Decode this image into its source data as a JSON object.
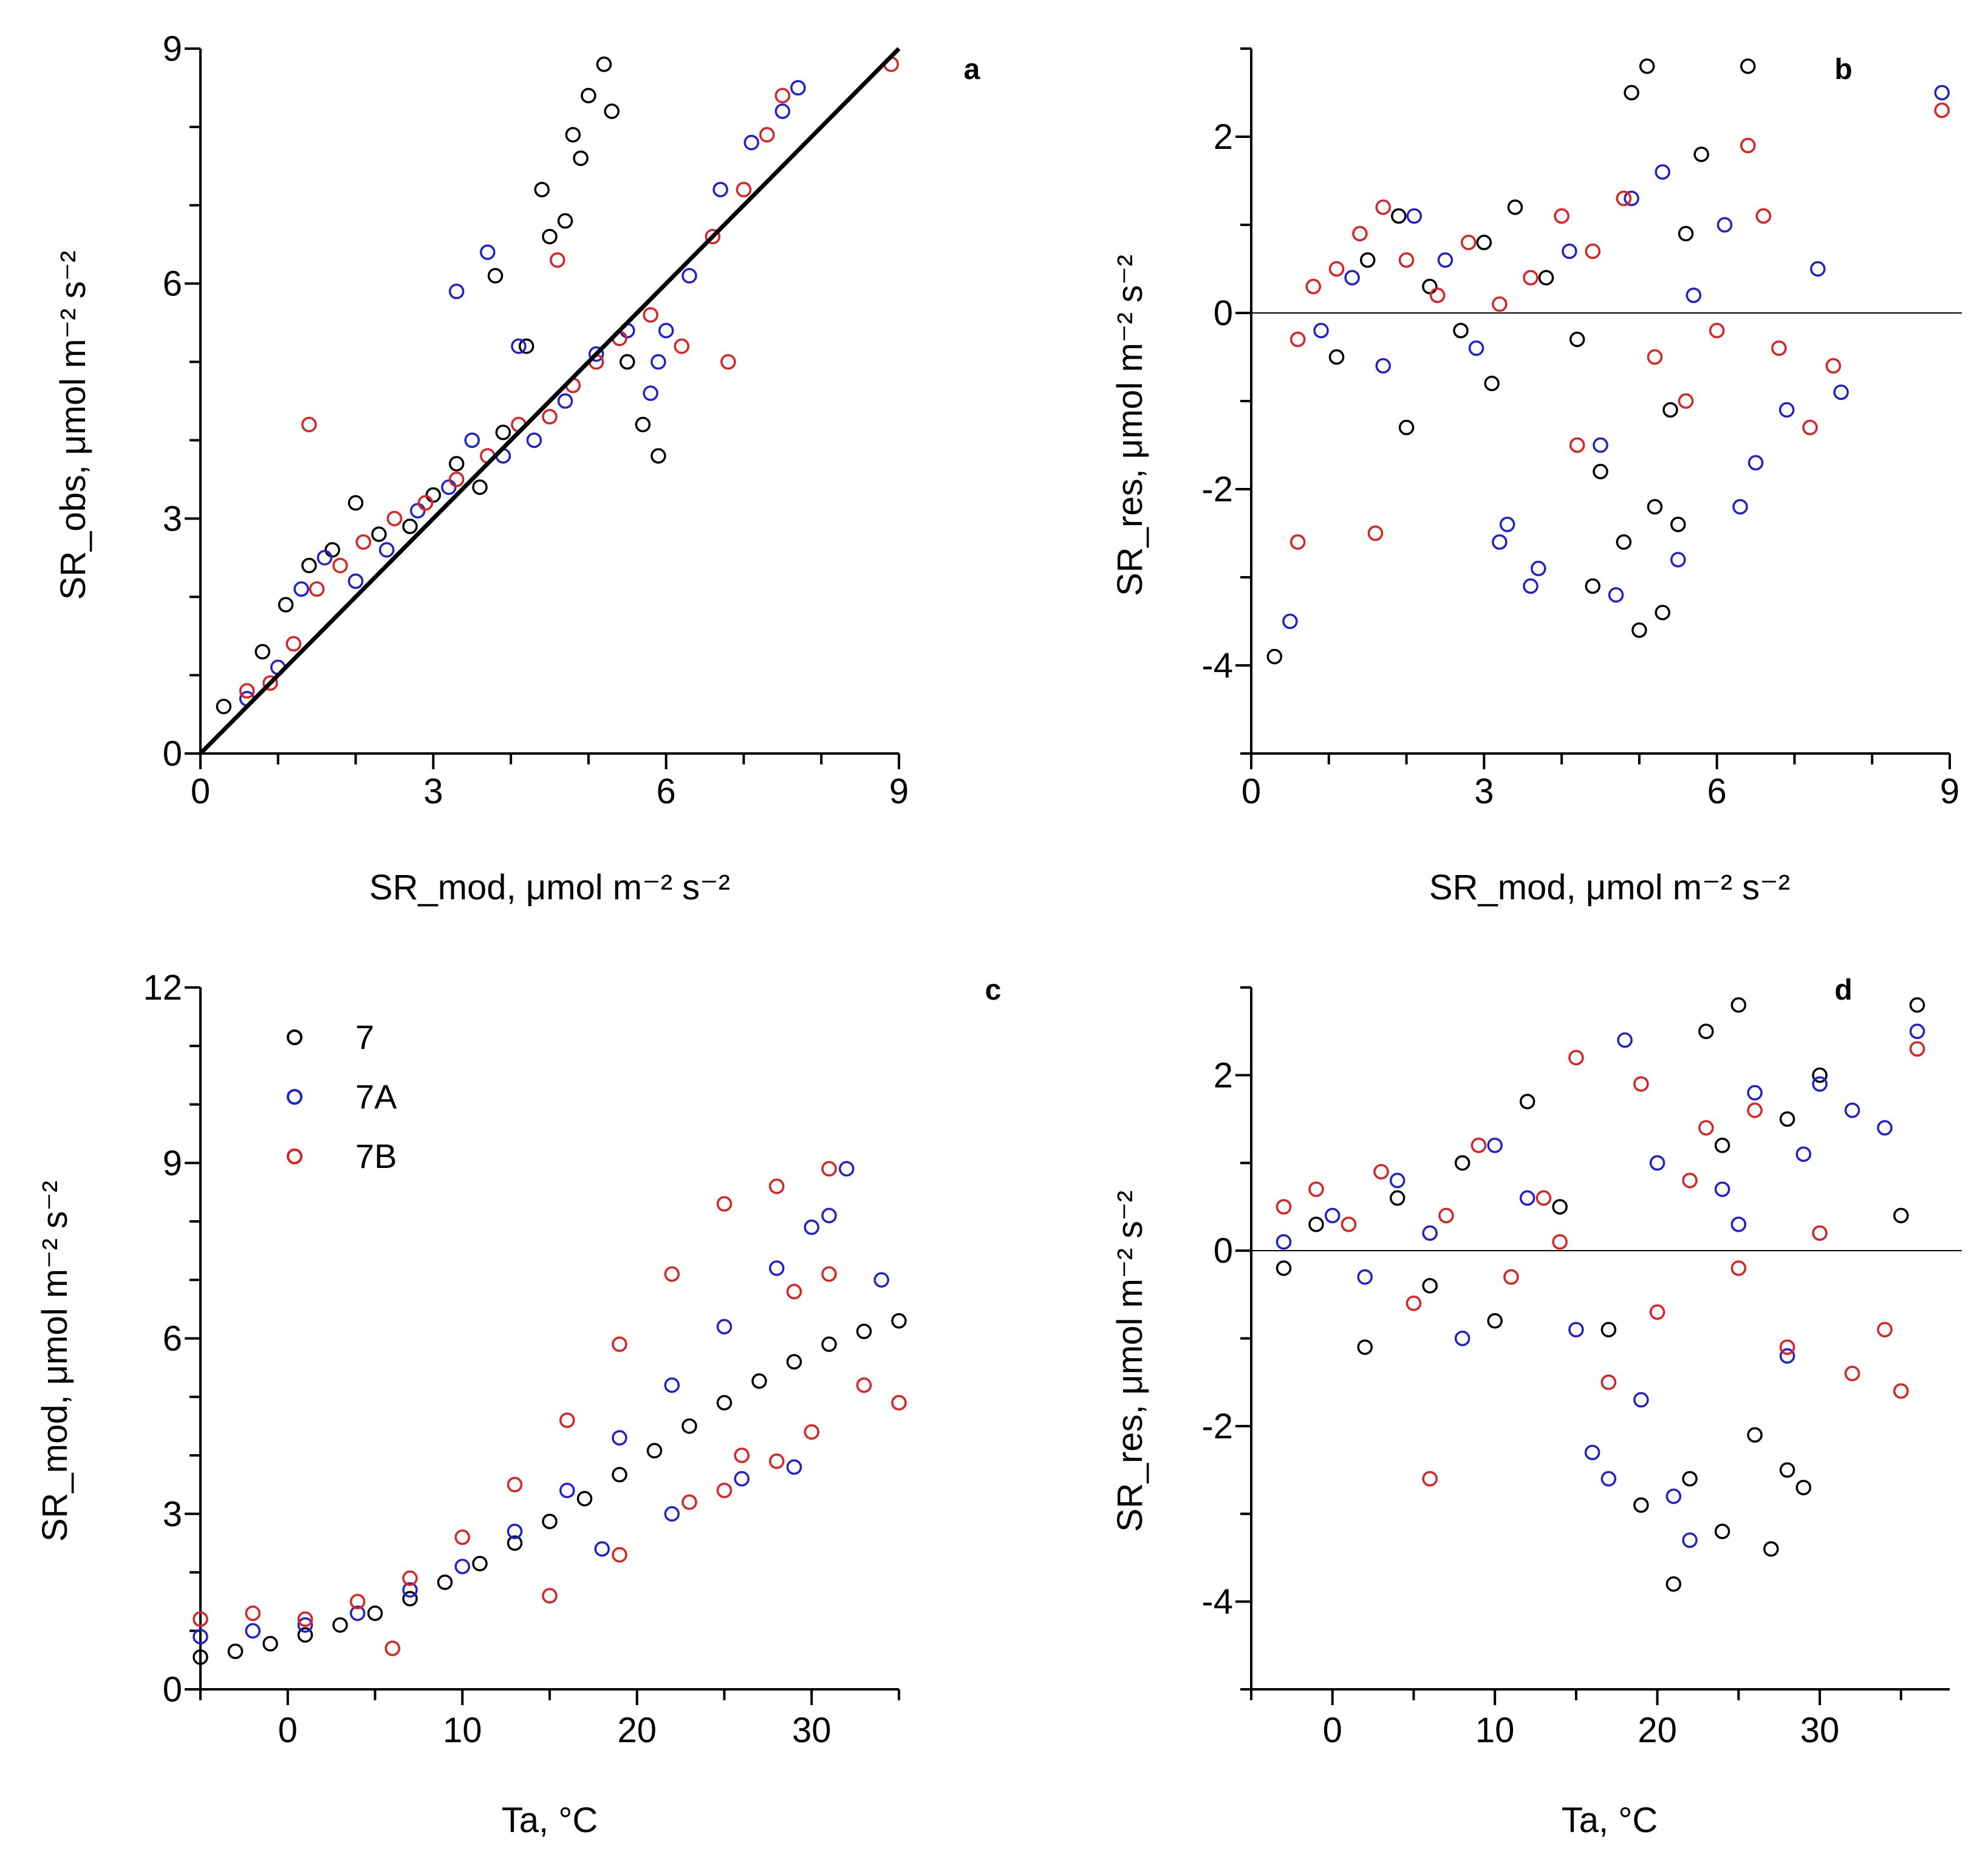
{
  "figure": {
    "series_styles": [
      {
        "name": "7",
        "color": "#000000"
      },
      {
        "name": "7A",
        "color": "#1f1fd6"
      },
      {
        "name": "7B",
        "color": "#e02020"
      }
    ]
  },
  "chart_data": [
    {
      "id": "a",
      "type": "scatter",
      "panel_letter": "a",
      "xlabel": "SR_mod, μmol m⁻² s⁻²",
      "ylabel": "SR_obs, μmol m⁻² s⁻²",
      "xlim": [
        0,
        9
      ],
      "ylim": [
        0,
        9
      ],
      "x_major_ticks": [
        0,
        3,
        6,
        9
      ],
      "x_minor_step": 1,
      "y_major_ticks": [
        0,
        3,
        6,
        9
      ],
      "y_minor_step": 1,
      "x_tick_labels": [
        "0",
        "3",
        "6",
        "9"
      ],
      "y_tick_labels": [
        "0",
        "3",
        "6",
        "9"
      ],
      "reference_line": {
        "type": "identity",
        "x": [
          0,
          9
        ],
        "y": [
          0,
          9
        ]
      },
      "series": [
        {
          "name": "7",
          "color": "#000000",
          "x": [
            0.3,
            0.8,
            1.1,
            1.4,
            1.7,
            2.0,
            2.3,
            2.7,
            3.0,
            3.3,
            3.6,
            3.9,
            4.2,
            4.5,
            4.8,
            5.0,
            5.2,
            5.5,
            5.7,
            5.9,
            4.4,
            4.9,
            5.3,
            3.8,
            4.7
          ],
          "y": [
            0.6,
            1.3,
            1.9,
            2.4,
            2.6,
            3.2,
            2.8,
            2.9,
            3.3,
            3.7,
            3.4,
            4.1,
            5.2,
            6.6,
            7.9,
            8.4,
            8.8,
            5.0,
            4.2,
            3.8,
            7.2,
            7.6,
            8.2,
            6.1,
            6.8
          ]
        },
        {
          "name": "7A",
          "color": "#1f1fd6",
          "x": [
            0.6,
            1.0,
            1.3,
            1.6,
            2.0,
            2.4,
            2.8,
            3.2,
            3.5,
            3.9,
            4.3,
            4.7,
            5.1,
            5.5,
            5.9,
            6.3,
            6.7,
            7.1,
            7.5,
            7.7,
            3.3,
            3.7,
            5.8,
            6.0,
            4.1
          ],
          "y": [
            0.7,
            1.1,
            2.1,
            2.5,
            2.2,
            2.6,
            3.1,
            3.4,
            4.0,
            3.8,
            4.0,
            4.5,
            5.1,
            5.4,
            5.0,
            6.1,
            7.2,
            7.8,
            8.2,
            8.5,
            5.9,
            6.4,
            4.6,
            5.4,
            5.2
          ]
        },
        {
          "name": "7B",
          "color": "#e02020",
          "x": [
            0.6,
            0.9,
            1.2,
            1.5,
            1.8,
            2.1,
            2.5,
            2.9,
            3.3,
            3.7,
            4.1,
            4.5,
            4.8,
            5.1,
            5.4,
            5.8,
            6.2,
            6.6,
            7.0,
            7.3,
            7.5,
            1.4,
            4.6,
            6.8,
            8.9
          ],
          "y": [
            0.8,
            0.9,
            1.4,
            2.1,
            2.4,
            2.7,
            3.0,
            3.2,
            3.5,
            3.8,
            4.2,
            4.3,
            4.7,
            5.0,
            5.3,
            5.6,
            5.2,
            6.6,
            7.2,
            7.9,
            8.4,
            4.2,
            6.3,
            5.0,
            8.8
          ]
        }
      ]
    },
    {
      "id": "b",
      "type": "scatter",
      "panel_letter": "b",
      "xlabel": "SR_mod, μmol m⁻² s⁻²",
      "ylabel": "SR_res, μmol m⁻² s⁻²",
      "xlim": [
        0,
        9
      ],
      "ylim": [
        -5,
        3
      ],
      "x_major_ticks": [
        0,
        3,
        6,
        9
      ],
      "x_minor_step": 1,
      "y_major_ticks": [
        -4,
        -2,
        0,
        2
      ],
      "y_minor_step": 1,
      "x_tick_labels": [
        "0",
        "3",
        "6",
        "9"
      ],
      "y_tick_labels": [
        "-4",
        "-2",
        "0",
        "2"
      ],
      "reference_line": {
        "type": "horizontal",
        "y": 0
      },
      "series": [
        {
          "name": "7",
          "color": "#000000",
          "x": [
            0.3,
            1.1,
            1.5,
            1.9,
            2.3,
            2.7,
            3.0,
            3.4,
            3.8,
            4.2,
            4.5,
            4.8,
            5.0,
            5.2,
            5.4,
            5.6,
            5.8,
            5.5,
            4.9,
            5.1,
            6.4,
            4.4,
            5.3,
            2.0,
            3.1
          ],
          "y": [
            -3.9,
            -0.5,
            0.6,
            1.1,
            0.3,
            -0.2,
            0.8,
            1.2,
            0.4,
            -0.3,
            -1.8,
            -2.6,
            -3.6,
            -2.2,
            -1.1,
            0.9,
            1.8,
            -2.4,
            2.5,
            2.8,
            2.8,
            -3.1,
            -3.4,
            -1.3,
            -0.8
          ]
        },
        {
          "name": "7A",
          "color": "#1f1fd6",
          "x": [
            0.5,
            0.9,
            1.3,
            1.7,
            2.1,
            2.5,
            2.9,
            3.3,
            3.7,
            4.1,
            4.5,
            4.9,
            5.3,
            5.7,
            6.1,
            6.5,
            6.9,
            7.3,
            7.6,
            8.9,
            3.2,
            3.6,
            5.5,
            6.3,
            4.7
          ],
          "y": [
            -3.5,
            -0.2,
            0.4,
            -0.6,
            1.1,
            0.6,
            -0.4,
            -2.4,
            -2.9,
            0.7,
            -1.5,
            1.3,
            1.6,
            0.2,
            1.0,
            -1.7,
            -1.1,
            0.5,
            -0.9,
            2.5,
            -2.6,
            -3.1,
            -2.8,
            -2.2,
            -3.2
          ]
        },
        {
          "name": "7B",
          "color": "#e02020",
          "x": [
            0.6,
            0.8,
            1.1,
            1.4,
            1.7,
            2.0,
            2.4,
            2.8,
            3.2,
            3.6,
            4.0,
            4.4,
            4.8,
            5.2,
            5.6,
            6.0,
            6.4,
            6.8,
            7.2,
            7.5,
            1.6,
            4.2,
            6.6,
            8.9,
            0.6
          ],
          "y": [
            -0.3,
            0.3,
            0.5,
            0.9,
            1.2,
            0.6,
            0.2,
            0.8,
            0.1,
            0.4,
            1.1,
            0.7,
            1.3,
            -0.5,
            -1.0,
            -0.2,
            1.9,
            -0.4,
            -1.3,
            -0.6,
            -2.5,
            -1.5,
            1.1,
            2.3,
            -2.6
          ]
        }
      ]
    },
    {
      "id": "c",
      "type": "scatter",
      "panel_letter": "c",
      "xlabel": "Ta, °C",
      "ylabel": "SR_mod, μmol m⁻² s⁻²",
      "xlim": [
        -5,
        35
      ],
      "ylim": [
        0,
        12
      ],
      "x_major_ticks": [
        0,
        10,
        20,
        30
      ],
      "x_minor_step": 5,
      "y_major_ticks": [
        0,
        3,
        6,
        9,
        12
      ],
      "y_minor_step": 1,
      "x_tick_labels": [
        "0",
        "10",
        "20",
        "30"
      ],
      "y_tick_labels": [
        "0",
        "3",
        "6",
        "9",
        "12"
      ],
      "legend": {
        "position": "top-left",
        "entries": [
          "7",
          "7A",
          "7B"
        ]
      },
      "series": [
        {
          "name": "7",
          "color": "#000000",
          "x": [
            -5,
            -3,
            -1,
            1,
            3,
            5,
            7,
            9,
            11,
            13,
            15,
            17,
            19,
            21,
            23,
            25,
            27,
            29,
            31,
            33,
            35
          ],
          "y": [
            0.55,
            0.65,
            0.78,
            0.93,
            1.1,
            1.3,
            1.55,
            1.83,
            2.15,
            2.5,
            2.87,
            3.26,
            3.67,
            4.08,
            4.5,
            4.9,
            5.27,
            5.6,
            5.9,
            6.12,
            6.3
          ]
        },
        {
          "name": "7A",
          "color": "#1f1fd6",
          "x": [
            -5,
            -2,
            1,
            4,
            7,
            10,
            13,
            16,
            19,
            22,
            25,
            28,
            30,
            32,
            34,
            18,
            22,
            26,
            29,
            31
          ],
          "y": [
            0.9,
            1.0,
            1.1,
            1.3,
            1.7,
            2.1,
            2.7,
            3.4,
            4.3,
            5.2,
            6.2,
            7.2,
            7.9,
            8.9,
            7.0,
            2.4,
            3.0,
            3.6,
            3.8,
            8.1
          ]
        },
        {
          "name": "7B",
          "color": "#e02020",
          "x": [
            -5,
            -2,
            1,
            4,
            7,
            10,
            13,
            16,
            19,
            22,
            25,
            28,
            31,
            15,
            19,
            23,
            26,
            29,
            31,
            33,
            35,
            25,
            28,
            30,
            6
          ],
          "y": [
            1.2,
            1.3,
            1.2,
            1.5,
            1.9,
            2.6,
            3.5,
            4.6,
            5.9,
            7.1,
            8.3,
            8.6,
            8.9,
            1.6,
            2.3,
            3.2,
            4.0,
            6.8,
            7.1,
            5.2,
            4.9,
            3.4,
            3.9,
            4.4,
            0.7
          ]
        }
      ]
    },
    {
      "id": "d",
      "type": "scatter",
      "panel_letter": "d",
      "xlabel": "Ta, °C",
      "ylabel": "SR_res, μmol m⁻² s⁻²",
      "xlim": [
        -5,
        38
      ],
      "ylim": [
        -5,
        3
      ],
      "x_major_ticks": [
        0,
        10,
        20,
        30
      ],
      "x_minor_step": 5,
      "y_major_ticks": [
        -4,
        -2,
        0,
        2
      ],
      "y_minor_step": 1,
      "x_tick_labels": [
        "0",
        "10",
        "20",
        "30"
      ],
      "y_tick_labels": [
        "-4",
        "-2",
        "0",
        "2"
      ],
      "reference_line": {
        "type": "horizontal",
        "y": 0
      },
      "series": [
        {
          "name": "7",
          "color": "#000000",
          "x": [
            -3,
            -1,
            2,
            4,
            6,
            8,
            10,
            12,
            14,
            17,
            19,
            21,
            22,
            23,
            24,
            25,
            26,
            27,
            28,
            29,
            30,
            35,
            36,
            24,
            28
          ],
          "y": [
            -0.2,
            0.3,
            -1.1,
            0.6,
            -0.4,
            1.0,
            -0.8,
            1.7,
            0.5,
            -0.9,
            -2.9,
            -3.8,
            -2.6,
            2.5,
            -3.2,
            2.8,
            -2.1,
            -3.4,
            1.5,
            -2.7,
            2.0,
            0.4,
            2.8,
            1.2,
            -2.5
          ]
        },
        {
          "name": "7A",
          "color": "#1f1fd6",
          "x": [
            -3,
            0,
            2,
            4,
            6,
            8,
            10,
            12,
            15,
            17,
            18,
            19,
            20,
            22,
            24,
            26,
            28,
            30,
            32,
            34,
            36,
            16,
            21,
            25,
            29
          ],
          "y": [
            0.1,
            0.4,
            -0.3,
            0.8,
            0.2,
            -1.0,
            1.2,
            0.6,
            -0.9,
            -2.6,
            2.4,
            -1.7,
            1.0,
            -3.3,
            0.7,
            1.8,
            -1.2,
            1.9,
            1.6,
            1.4,
            2.5,
            -2.3,
            -2.8,
            0.3,
            1.1
          ]
        },
        {
          "name": "7B",
          "color": "#e02020",
          "x": [
            -3,
            -1,
            1,
            3,
            5,
            6,
            7,
            9,
            11,
            13,
            15,
            17,
            19,
            20,
            22,
            23,
            25,
            26,
            28,
            30,
            32,
            34,
            35,
            36,
            14
          ],
          "y": [
            0.5,
            0.7,
            0.3,
            0.9,
            -0.6,
            -2.6,
            0.4,
            1.2,
            -0.3,
            0.6,
            2.2,
            -1.5,
            1.9,
            -0.7,
            0.8,
            1.4,
            -0.2,
            1.6,
            -1.1,
            0.2,
            -1.4,
            -0.9,
            -1.6,
            2.3,
            0.1
          ]
        }
      ]
    }
  ]
}
